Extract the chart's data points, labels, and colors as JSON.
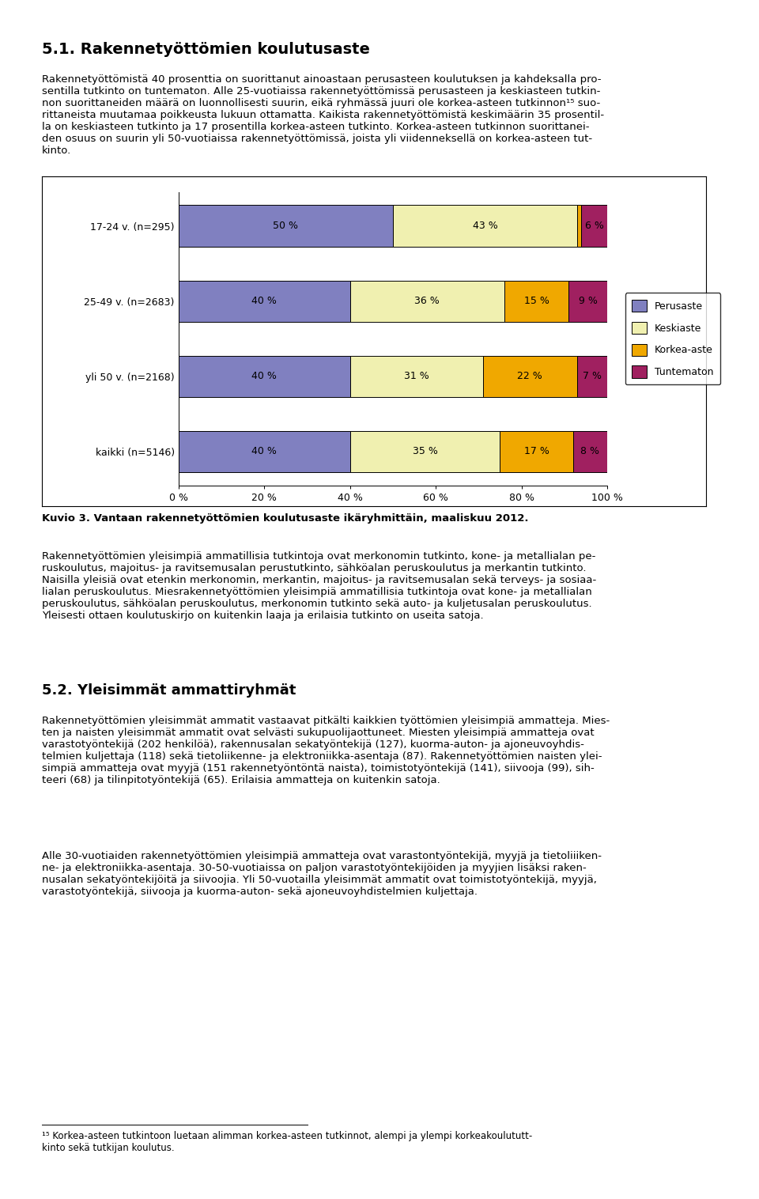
{
  "categories": [
    "17-24 v. (n=295)",
    "25-49 v. (n=2683)",
    "yli 50 v. (n=2168)",
    "kaikki (n=5146)"
  ],
  "perusaste": [
    50,
    40,
    40,
    40
  ],
  "keskiaste": [
    43,
    36,
    31,
    35
  ],
  "korkea_aste": [
    1,
    15,
    22,
    17
  ],
  "tuntematon": [
    6,
    9,
    7,
    8
  ],
  "colors": {
    "perusaste": "#8080c0",
    "keskiaste": "#f0f0b0",
    "korkea_aste": "#f0a800",
    "tuntematon": "#a02060"
  },
  "legend_labels": [
    "Perusaste",
    "Keskiaste",
    "Korkea-aste",
    "Tuntematon"
  ],
  "xlabel_ticks": [
    0,
    20,
    40,
    60,
    80,
    100
  ],
  "xlabel_labels": [
    "0 %",
    "20 %",
    "40 %",
    "60 %",
    "80 %",
    "100 %"
  ],
  "figure_width": 9.6,
  "figure_height": 15.16,
  "bar_height": 0.55,
  "chart_bg": "#ffffff",
  "heading": "5.1. Rakennetyöttömien koulutusaste",
  "para1": "Rakennetyöttömistä 40 prosenttia on suorittanut ainoastaan perusasteen koulutuksen ja kahdeksalla pro-\nsentilla tutkinto on tuntematon. Alle 25-vuotiaissa rakennetyöttömissä perusasteen ja keskiasteen tutkin-\nnon suorittaneiden määrä on luonnollisesti suurin, eikä ryhmässä juuri ole korkea-asteen tutkinnon¹⁵ suo-\nrittaneista muutamaa poikkeusta lukuun ottamatta. Kaikista rakennetyöttömistä keskimäärin 35 prosentil-\nla on keskiasteen tutkinto ja 17 prosentilla korkea-asteen tutkinto. Korkea-asteen tutkinnon suorittanei-\nden osuus on suurin yli 50-vuotiaissa rakennetyöttömissä, joista yli viidenneksellä on korkea-asteen tut-\nkinto.",
  "caption": "Kuvio 3. Vantaan rakennetyöttömien koulutusaste ikäryhmittäin, maaliskuu 2012.",
  "para2": "Rakennetyöttömien yleisimpiä ammatillisia tutkintoja ovat merkonomin tutkinto, kone- ja metallialan pe-\nruskoulutus, majoitus- ja ravitsemusalan perustutkinto, sähköalan peruskoulutus ja merkantin tutkinto.\nNaisilla yleisiä ovat etenkin merkonomin, merkantin, majoitus- ja ravitsemusalan sekä terveys- ja sosiaa-\nlialan peruskoulutus. Miesrakennetyöttömien yleisimpiä ammatillisia tutkintoja ovat kone- ja metallialan\nperuskoulutus, sähköalan peruskoulutus, merkonomin tutkinto sekä auto- ja kuljetusalan peruskoulutus.\nYleisesti ottaen koulutuskirjo on kuitenkin laaja ja erilaisia tutkinto on useita satoja.",
  "heading2": "5.2. Yleisimmät ammattiryhmät",
  "para3": "Rakennetyöttömien yleisimmät ammatit vastaavat pitkälti kaikkien työttömien yleisimpiä ammatteja. Mies-\nten ja naisten yleisimmät ammatit ovat selvästi sukupuolijaottuneet. Miesten yleisimpiä ammatteja ovat\nvarastotyöntekijä (202 henkilöä), rakennusalan sekatyöntekijä (127), kuorma-auton- ja ajoneuvoyhdis-\ntelmien kuljettaja (118) sekä tietoliikenne- ja elektroniikka-asentaja (87). Rakennetyöttömien naisten ylei-\nsimpiä ammatteja ovat myyjä (151 rakennetyöntöntä naista), toimistotyöntekijä (141), siivooja (99), sih-\nteeri (68) ja tilinpitotyöntekijä (65). Erilaisia ammatteja on kuitenkin satoja.",
  "para4": "Alle 30-vuotiaiden rakennetyöttömien yleisimpiä ammatteja ovat varastontyöntekijä, myyjä ja tietoliiiken-\nne- ja elektroniikka-asentaja. 30-50-vuotiaissa on paljon varastotyöntekijöiden ja myyjien lisäksi raken-\nnusalan sekatyöntekijöitä ja siivoojia. Yli 50-vuotailla yleisimmät ammatit ovat toimistotyöntekijä, myyjä,\nvarastotyöntekijä, siivooja ja kuorma-auton- sekä ajoneuvoyhdistelmien kuljettaja.",
  "footnote": "¹⁵ Korkea-asteen tutkintoon luetaan alimman korkea-asteen tutkinnot, alempi ja ylempi korkeakoulututt-\nkinto sekä tutkijan koulutus."
}
